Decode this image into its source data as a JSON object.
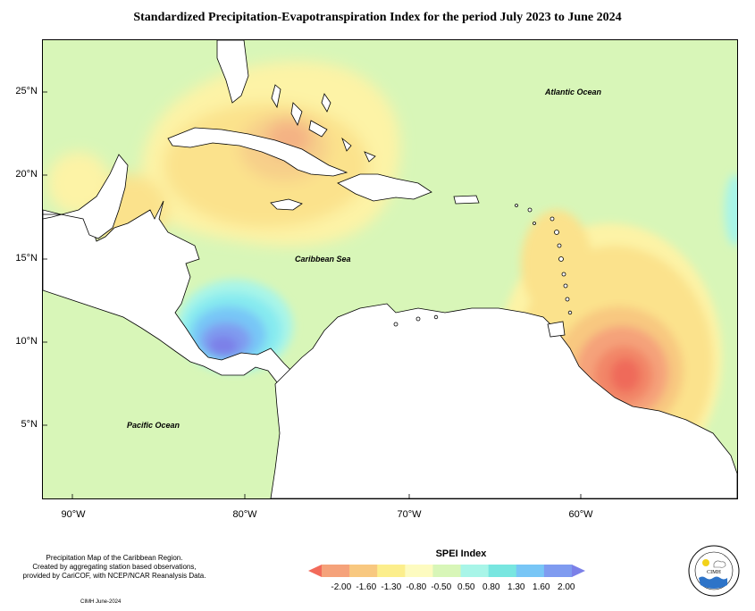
{
  "title": "Standardized Precipitation-Evapotranspiration Index for the period July 2023 to June 2024",
  "map": {
    "lat_ticks": [
      "25°N",
      "20°N",
      "15°N",
      "10°N",
      "5°N"
    ],
    "lon_ticks": [
      "90°W",
      "80°W",
      "70°W",
      "60°W"
    ],
    "labels": {
      "atlantic": "Atlantic Ocean",
      "caribbean": "Caribbean Sea",
      "pacific": "Pacific Ocean"
    },
    "background_color": "#d8f6b8",
    "land_no_data_color": "#ffffff",
    "anomalies": [
      {
        "region": "Cuba / Bahamas",
        "category": "-1.30 to -0.80",
        "peak_category": "-1.60 to -1.30"
      },
      {
        "region": "Yucatan / Belize",
        "category": "-1.30 to -0.80"
      },
      {
        "region": "Lesser Antilles / Guyana",
        "category": "-1.30 to -0.80",
        "peak_category": "< -2.00"
      },
      {
        "region": "Southwestern Caribbean / Panama",
        "category": "0.50 to 1.30",
        "peak_category": "1.60 to 2.00"
      }
    ]
  },
  "credit": {
    "lines": [
      "Precipitation Map of the Caribbean Region.",
      "Created by aggregating station based observations,",
      "provided by CariCOF, with NCEP/NCAR Reanalysis Data."
    ],
    "date": "CIMH June-2024"
  },
  "legend": {
    "title": "SPEI Index",
    "labels": [
      "-2.00",
      "-1.60",
      "-1.30",
      "-0.80",
      "-0.50",
      "0.50",
      "0.80",
      "1.30",
      "1.60",
      "2.00"
    ],
    "colors": [
      "#f26a5a",
      "#f5a27a",
      "#f8c880",
      "#fcee8c",
      "#fdfbc0",
      "#d8f6b8",
      "#a8f5e8",
      "#78e6e0",
      "#78c6f6",
      "#7f9bf0",
      "#7b80e8"
    ]
  },
  "logo": {
    "name": "CIMH",
    "ring_text": "Caribbean Institute for Meteorology and Hydrology"
  }
}
